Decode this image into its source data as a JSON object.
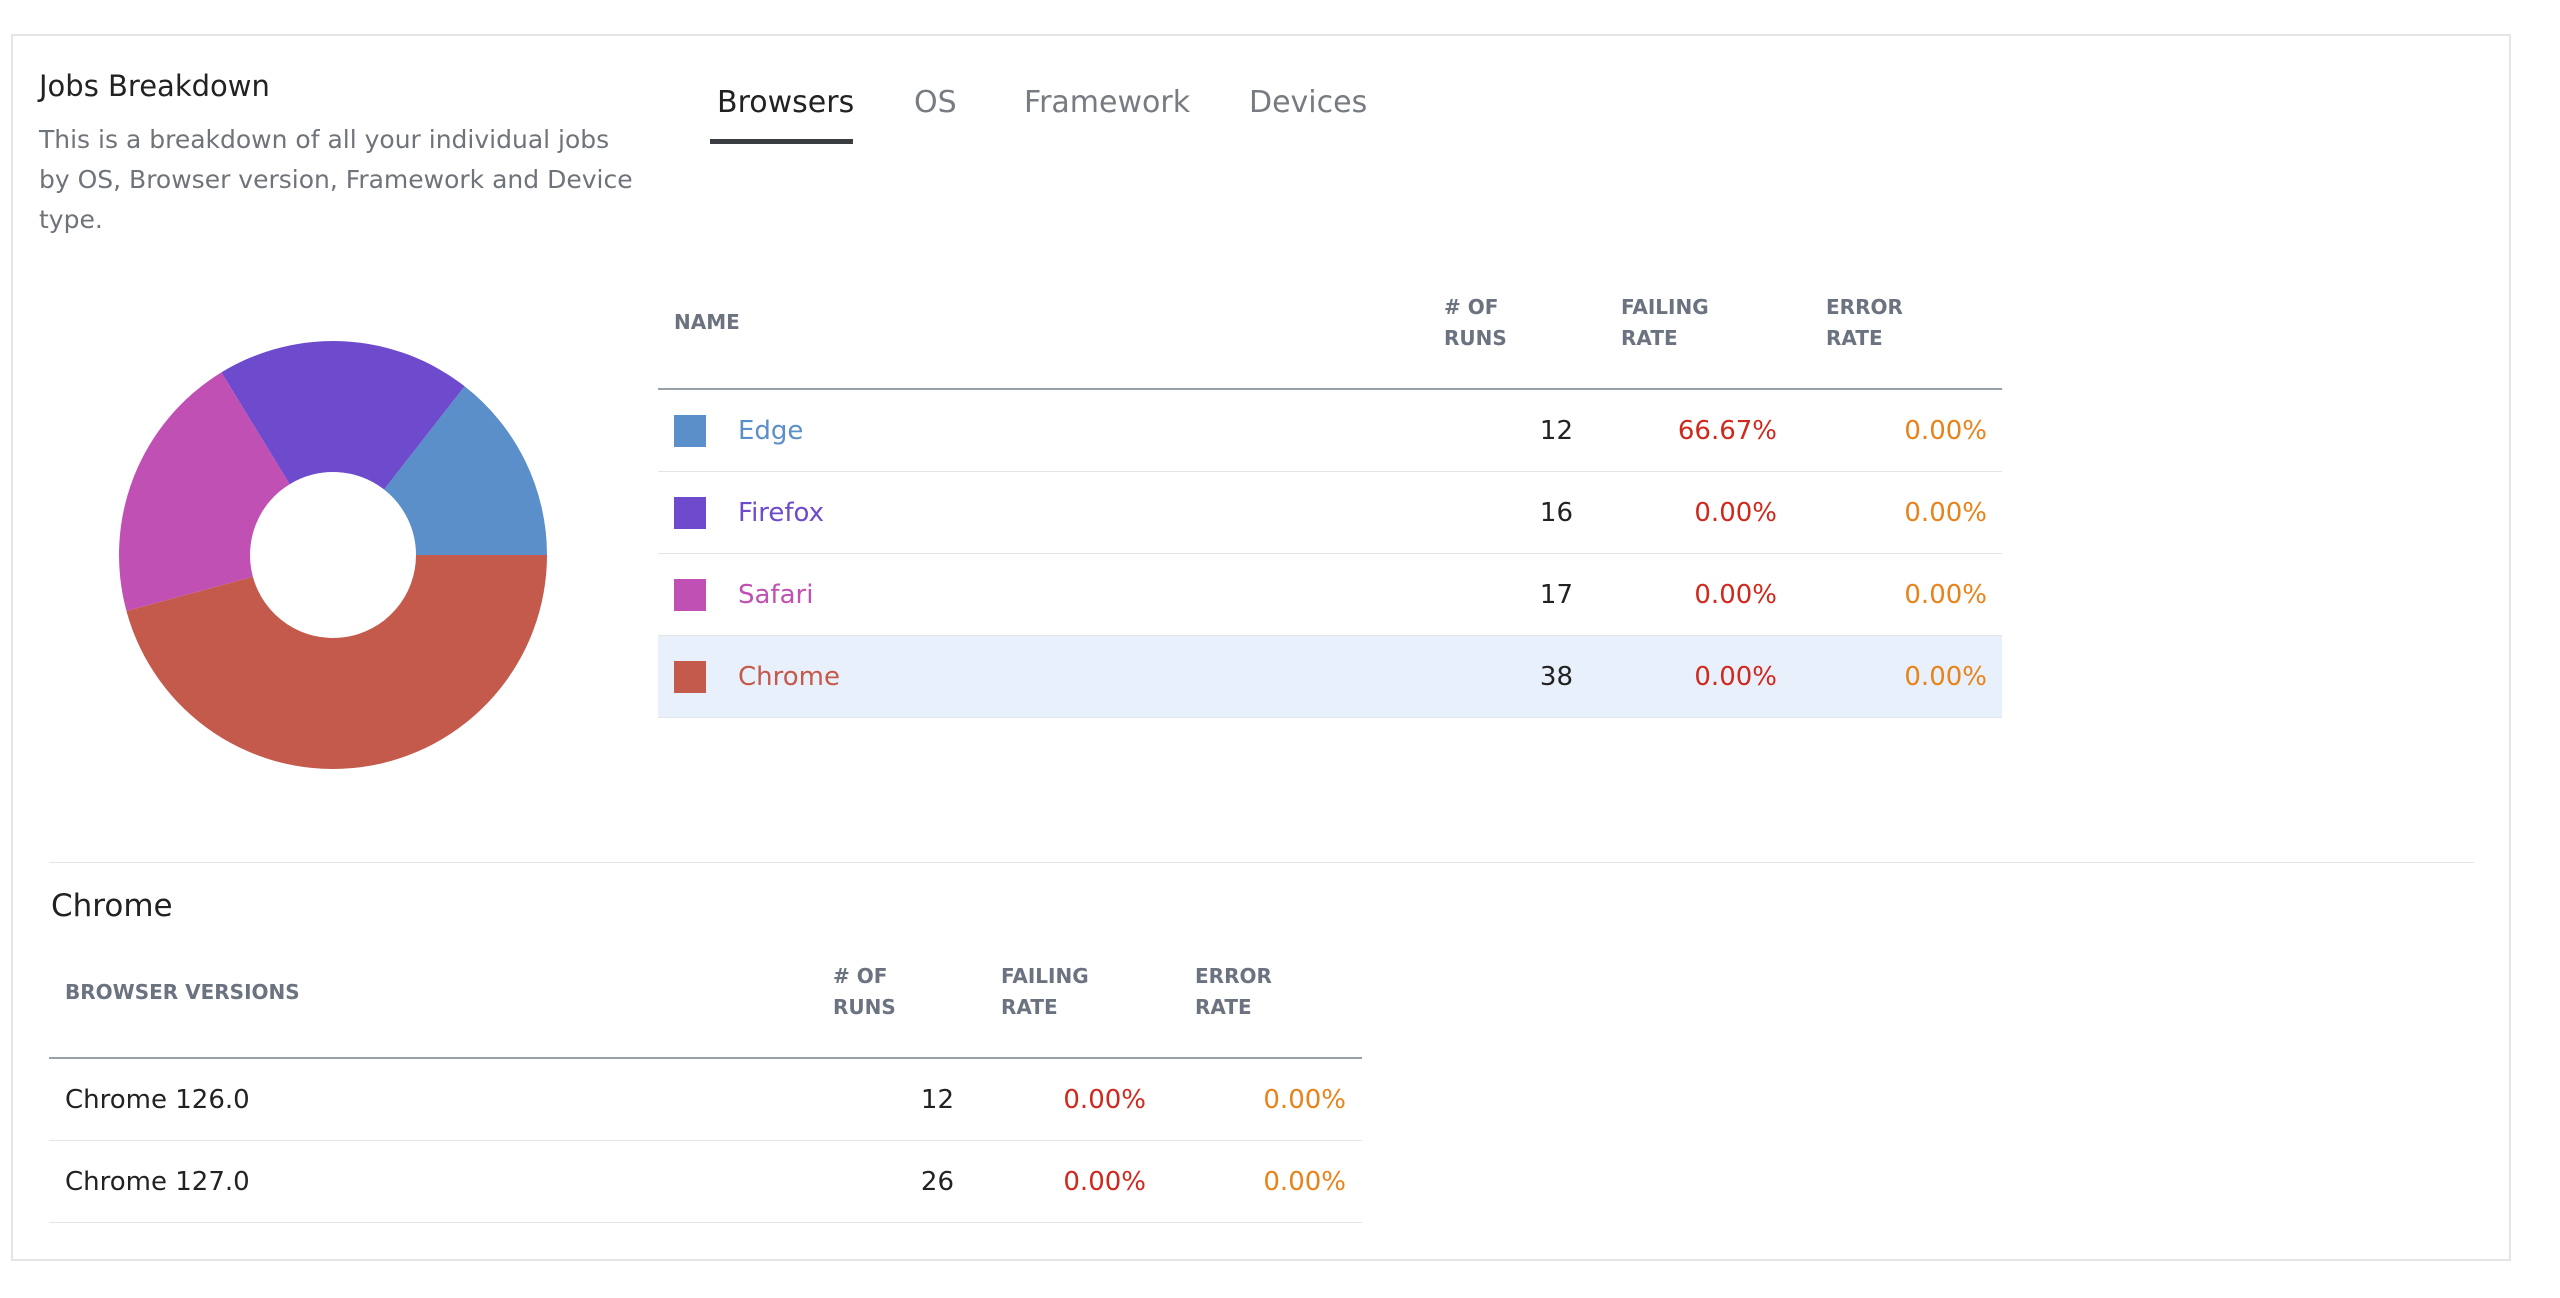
{
  "header": {
    "title": "Jobs Breakdown",
    "description": "This is a breakdown of all your individual jobs by OS, Browser version, Framework and Device type."
  },
  "tabs": [
    "Browsers",
    "OS",
    "Framework",
    "Devices"
  ],
  "table": {
    "columns": [
      "NAME",
      "# OF RUNS",
      "FAILING RATE",
      "ERROR RATE"
    ],
    "rows": [
      {
        "name": "Edge",
        "color": "#5b8fc9",
        "runs": 12,
        "failing_rate": "66.67%",
        "error_rate": "0.00%"
      },
      {
        "name": "Firefox",
        "color": "#6e4bcc",
        "runs": 16,
        "failing_rate": "0.00%",
        "error_rate": "0.00%"
      },
      {
        "name": "Safari",
        "color": "#c150b4",
        "runs": 17,
        "failing_rate": "0.00%",
        "error_rate": "0.00%"
      },
      {
        "name": "Chrome",
        "color": "#c45a4b",
        "runs": 38,
        "failing_rate": "0.00%",
        "error_rate": "0.00%"
      }
    ]
  },
  "detail": {
    "title": "Chrome",
    "columns": [
      "BROWSER VERSIONS",
      "# OF RUNS",
      "FAILING RATE",
      "ERROR RATE"
    ],
    "rows": [
      {
        "name": "Chrome 126.0",
        "runs": 12,
        "failing_rate": "0.00%",
        "error_rate": "0.00%"
      },
      {
        "name": "Chrome 127.0",
        "runs": 26,
        "failing_rate": "0.00%",
        "error_rate": "0.00%"
      }
    ]
  }
}
